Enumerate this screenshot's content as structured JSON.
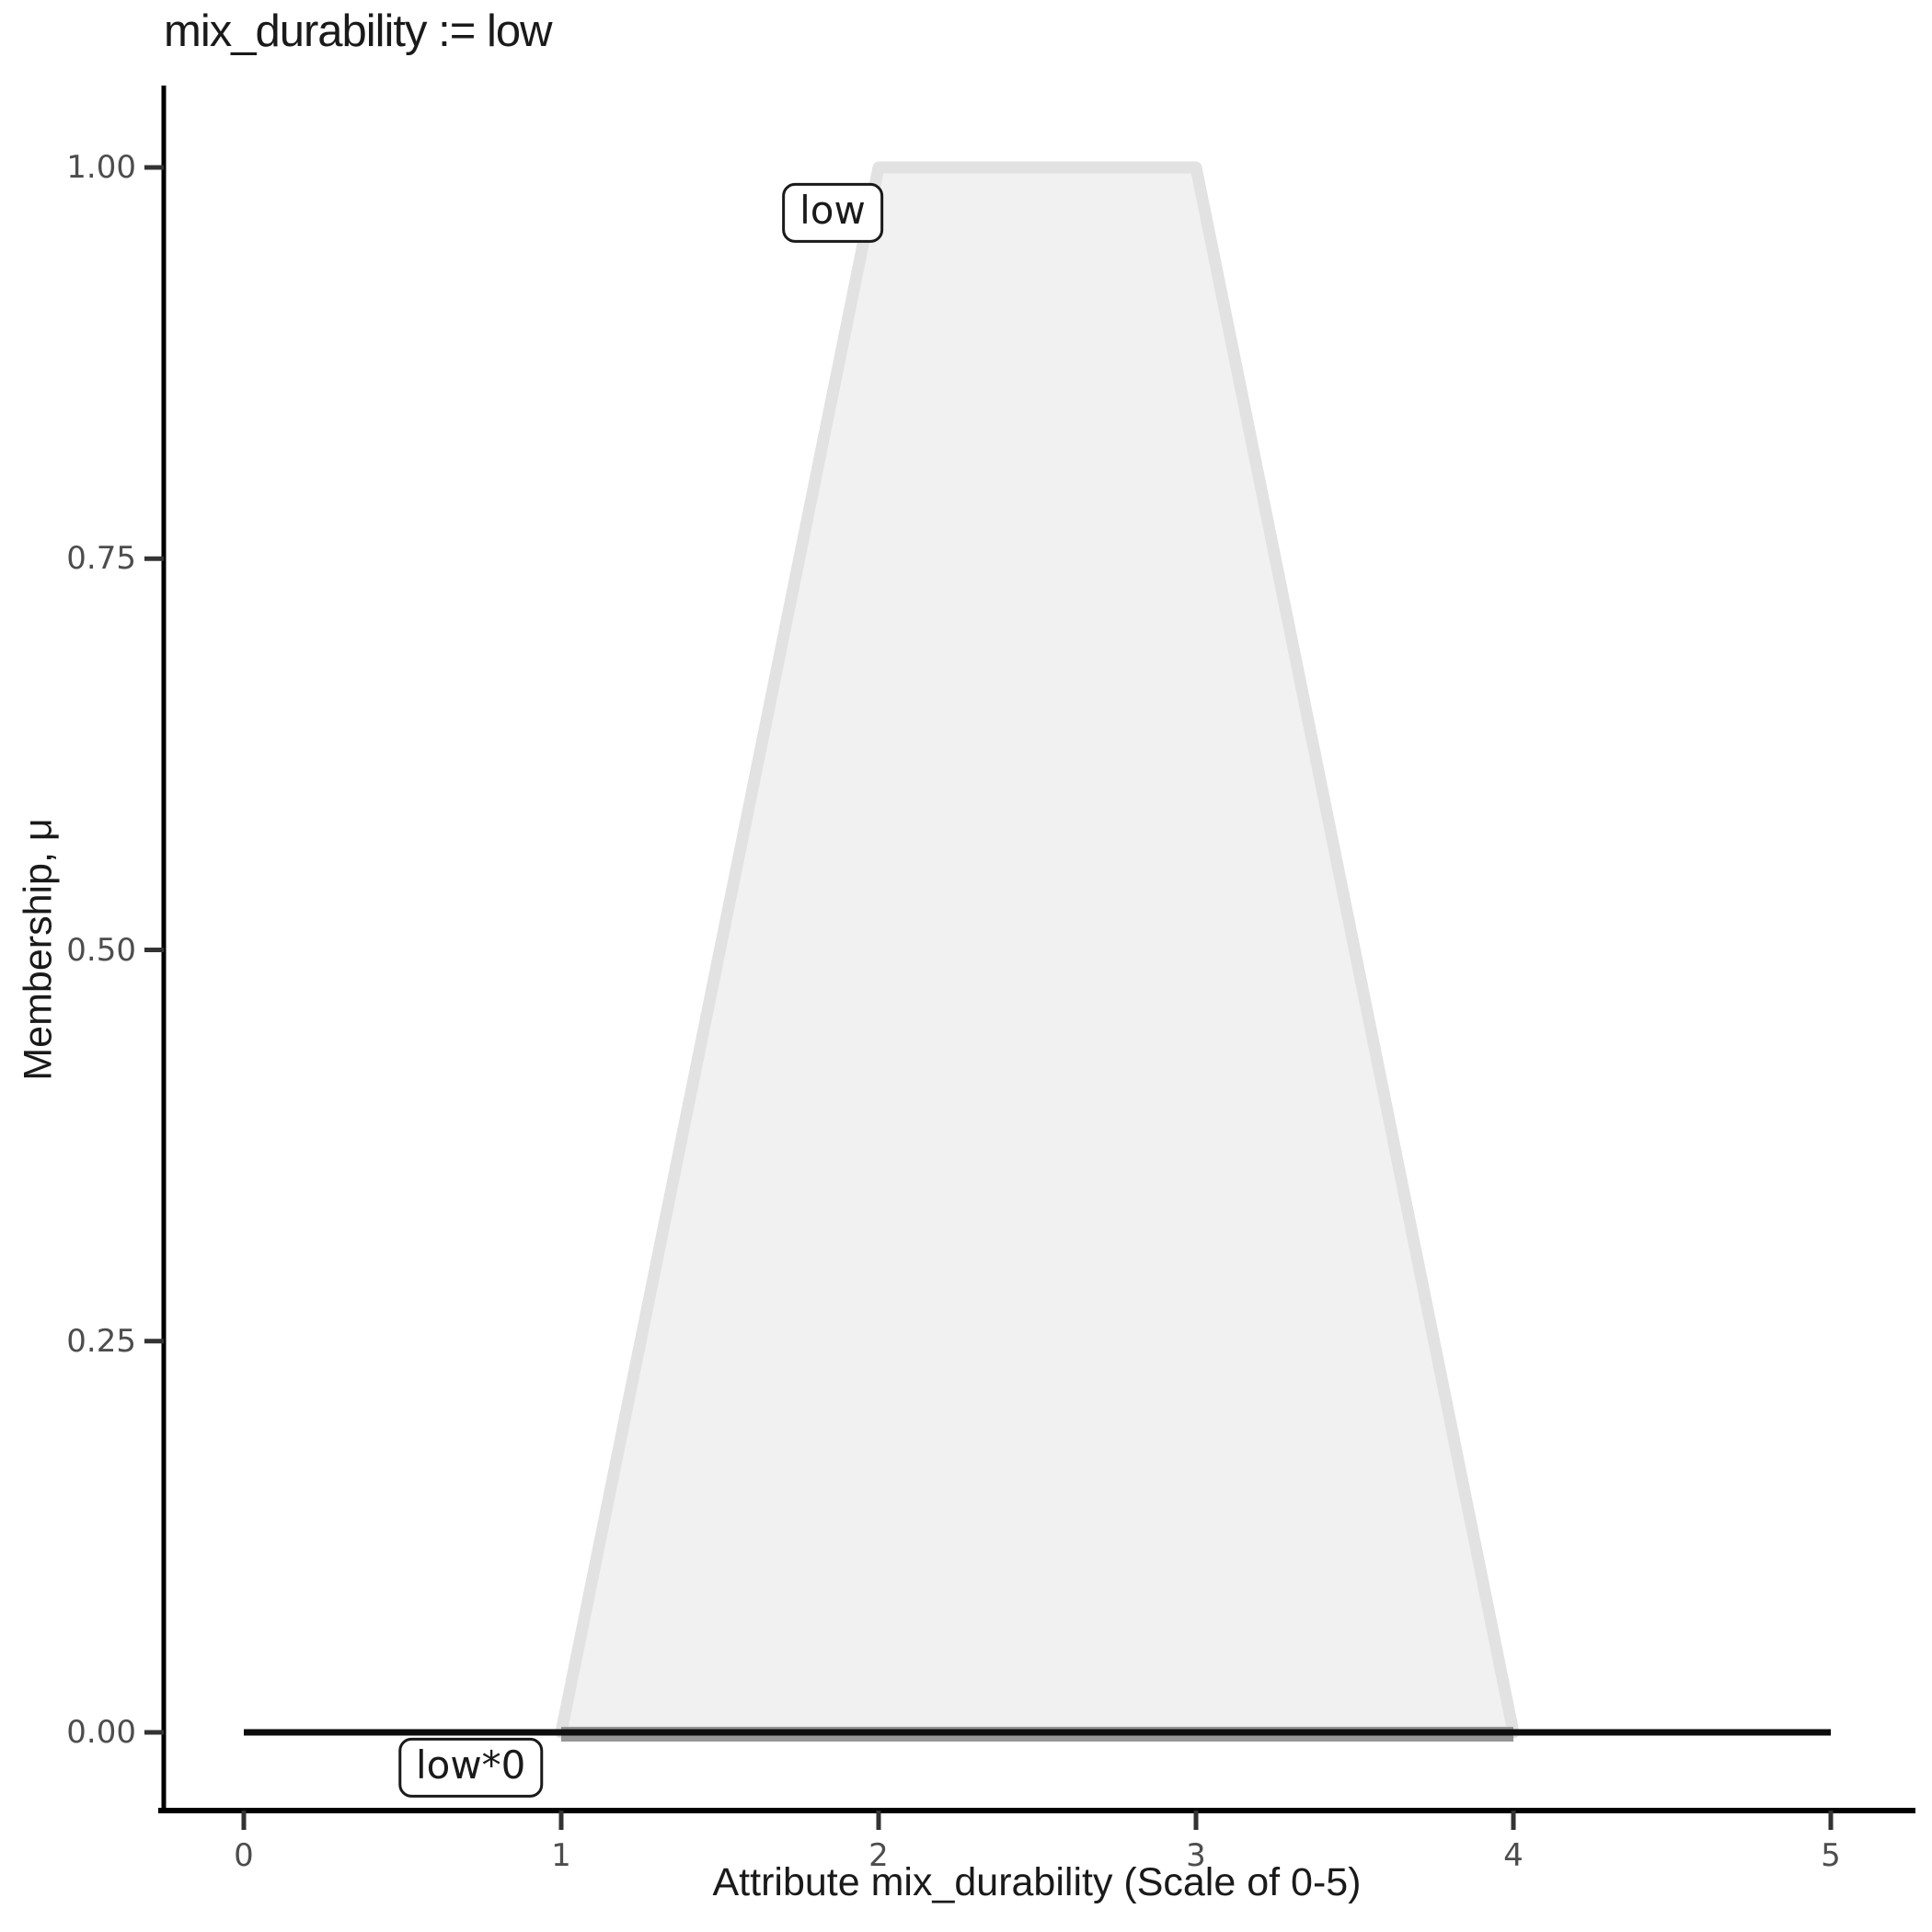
{
  "chart_data": {
    "type": "area",
    "title": "mix_durability := low",
    "xlabel": "Attribute mix_durability (Scale of 0-5)",
    "ylabel": "Membership, μ",
    "xlim": [
      0,
      5
    ],
    "ylim": [
      0,
      1
    ],
    "x_tick_values": [
      0,
      1,
      2,
      3,
      4,
      5
    ],
    "x_ticks": [
      "0",
      "1",
      "2",
      "3",
      "4",
      "5"
    ],
    "y_tick_values": [
      0,
      0.25,
      0.5,
      0.75,
      1.0
    ],
    "y_ticks": [
      "0.00",
      "0.25",
      "0.50",
      "0.75",
      "1.00"
    ],
    "grid": false,
    "legend": "none",
    "series": [
      {
        "name": "low",
        "type": "polygon",
        "points": [
          [
            1,
            0
          ],
          [
            2,
            1
          ],
          [
            3,
            1
          ],
          [
            4,
            0
          ]
        ],
        "fill": "#F1F1F1",
        "stroke": "#E2E2E2"
      },
      {
        "name": "low*0",
        "type": "line",
        "points": [
          [
            0,
            0
          ],
          [
            5,
            0
          ]
        ],
        "stroke": "#0D0D0D"
      }
    ],
    "overlap_band": {
      "from_x": 1,
      "to_x": 4,
      "y": 0,
      "color": "#969696"
    },
    "annotations": [
      {
        "text": "low",
        "x": 1.855,
        "y": 0.971
      },
      {
        "text": "low*0",
        "x": 0.715,
        "y": -0.0226
      }
    ],
    "colors": {
      "background": "#FFFFFF",
      "axis_line": "#000000",
      "tick_mark": "#333333",
      "tick_label": "#4D4D4D",
      "title_text": "#1A1A1A"
    }
  }
}
